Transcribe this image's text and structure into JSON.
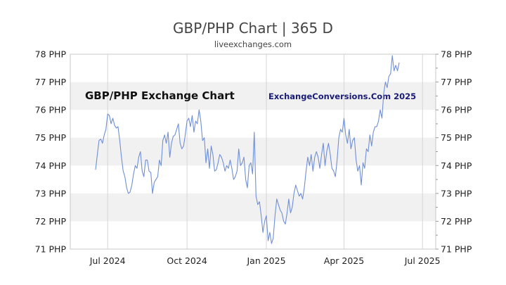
{
  "colors": {
    "line": "#6f8fd8",
    "band": "#f1f1f1",
    "grid": "#d6d6d6",
    "frame": "#c8c8c8"
  },
  "chart_data": {
    "type": "line",
    "title": "GBP/PHP Chart | 365 D",
    "subtitle": "liveexchanges.com",
    "inner_title": "GBP/PHP Exchange Chart",
    "inner_brand": "ExchangeConversions.Com 2025",
    "xlabel": "",
    "ylabel": "",
    "ylim": [
      71,
      78
    ],
    "y_ticks": [
      71,
      72,
      73,
      74,
      75,
      76,
      77,
      78
    ],
    "y_tick_labels": [
      "71 PHP",
      "72 PHP",
      "73 PHP",
      "74 PHP",
      "75 PHP",
      "76 PHP",
      "77 PHP",
      "78 PHP"
    ],
    "x_domain": [
      0,
      365
    ],
    "x_ticks": [
      {
        "x": 14,
        "label": "Jul 2024"
      },
      {
        "x": 106,
        "label": "Oct 2024"
      },
      {
        "x": 198,
        "label": "Jan 2025"
      },
      {
        "x": 288,
        "label": "Apr 2025"
      },
      {
        "x": 379,
        "label": "Jul 2025"
      }
    ],
    "series": [
      {
        "name": "GBP/PHP",
        "points": [
          [
            0,
            73.85
          ],
          [
            2,
            74.4
          ],
          [
            4,
            74.9
          ],
          [
            6,
            74.95
          ],
          [
            8,
            74.8
          ],
          [
            10,
            75.1
          ],
          [
            12,
            75.3
          ],
          [
            14,
            75.85
          ],
          [
            16,
            75.8
          ],
          [
            18,
            75.5
          ],
          [
            20,
            75.7
          ],
          [
            22,
            75.45
          ],
          [
            24,
            75.35
          ],
          [
            26,
            75.4
          ],
          [
            28,
            74.9
          ],
          [
            30,
            74.3
          ],
          [
            32,
            73.8
          ],
          [
            34,
            73.6
          ],
          [
            36,
            73.2
          ],
          [
            38,
            73.0
          ],
          [
            40,
            73.05
          ],
          [
            42,
            73.3
          ],
          [
            44,
            73.7
          ],
          [
            46,
            74.0
          ],
          [
            48,
            73.9
          ],
          [
            50,
            74.3
          ],
          [
            52,
            74.5
          ],
          [
            54,
            73.8
          ],
          [
            56,
            73.6
          ],
          [
            58,
            74.2
          ],
          [
            60,
            74.2
          ],
          [
            62,
            73.8
          ],
          [
            64,
            73.75
          ],
          [
            66,
            73.0
          ],
          [
            68,
            73.4
          ],
          [
            70,
            73.5
          ],
          [
            72,
            73.6
          ],
          [
            74,
            74.2
          ],
          [
            76,
            74.0
          ],
          [
            78,
            74.9
          ],
          [
            80,
            75.1
          ],
          [
            82,
            74.8
          ],
          [
            84,
            75.2
          ],
          [
            86,
            74.3
          ],
          [
            88,
            74.8
          ],
          [
            90,
            75.05
          ],
          [
            92,
            75.1
          ],
          [
            94,
            75.3
          ],
          [
            96,
            75.5
          ],
          [
            98,
            74.8
          ],
          [
            100,
            74.6
          ],
          [
            102,
            74.7
          ],
          [
            104,
            75.1
          ],
          [
            106,
            75.6
          ],
          [
            108,
            75.7
          ],
          [
            110,
            75.4
          ],
          [
            112,
            75.8
          ],
          [
            114,
            75.2
          ],
          [
            116,
            75.6
          ],
          [
            118,
            75.5
          ],
          [
            120,
            76.0
          ],
          [
            122,
            75.6
          ],
          [
            124,
            74.9
          ],
          [
            126,
            75.0
          ],
          [
            128,
            74.1
          ],
          [
            130,
            74.6
          ],
          [
            132,
            73.9
          ],
          [
            134,
            74.7
          ],
          [
            136,
            74.4
          ],
          [
            138,
            73.8
          ],
          [
            140,
            73.85
          ],
          [
            142,
            74.1
          ],
          [
            144,
            74.4
          ],
          [
            146,
            74.3
          ],
          [
            148,
            74.1
          ],
          [
            150,
            73.8
          ],
          [
            152,
            74.0
          ],
          [
            154,
            73.9
          ],
          [
            156,
            74.2
          ],
          [
            158,
            73.9
          ],
          [
            160,
            73.5
          ],
          [
            162,
            73.6
          ],
          [
            164,
            73.8
          ],
          [
            166,
            74.6
          ],
          [
            168,
            74.0
          ],
          [
            170,
            74.1
          ],
          [
            172,
            74.3
          ],
          [
            174,
            73.5
          ],
          [
            176,
            73.2
          ],
          [
            178,
            74.0
          ],
          [
            180,
            74.1
          ],
          [
            182,
            73.7
          ],
          [
            184,
            75.2
          ],
          [
            186,
            72.9
          ],
          [
            188,
            72.6
          ],
          [
            190,
            72.7
          ],
          [
            192,
            72.2
          ],
          [
            194,
            71.6
          ],
          [
            196,
            72.0
          ],
          [
            198,
            72.2
          ],
          [
            200,
            71.3
          ],
          [
            202,
            71.6
          ],
          [
            204,
            71.2
          ],
          [
            206,
            71.4
          ],
          [
            208,
            72.2
          ],
          [
            210,
            72.8
          ],
          [
            212,
            72.6
          ],
          [
            214,
            72.4
          ],
          [
            216,
            72.3
          ],
          [
            218,
            72.0
          ],
          [
            220,
            71.9
          ],
          [
            222,
            72.3
          ],
          [
            224,
            72.8
          ],
          [
            226,
            72.3
          ],
          [
            228,
            72.5
          ],
          [
            230,
            73.0
          ],
          [
            232,
            73.3
          ],
          [
            234,
            73.1
          ],
          [
            236,
            72.9
          ],
          [
            238,
            73.0
          ],
          [
            240,
            72.8
          ],
          [
            242,
            73.2
          ],
          [
            244,
            73.8
          ],
          [
            246,
            74.3
          ],
          [
            248,
            74.0
          ],
          [
            250,
            74.4
          ],
          [
            252,
            73.8
          ],
          [
            254,
            74.3
          ],
          [
            256,
            74.5
          ],
          [
            258,
            74.3
          ],
          [
            260,
            73.9
          ],
          [
            262,
            74.4
          ],
          [
            264,
            74.8
          ],
          [
            266,
            74.0
          ],
          [
            268,
            74.5
          ],
          [
            270,
            74.8
          ],
          [
            272,
            74.4
          ],
          [
            274,
            73.9
          ],
          [
            276,
            73.8
          ],
          [
            278,
            73.6
          ],
          [
            280,
            74.2
          ],
          [
            282,
            75.0
          ],
          [
            284,
            75.3
          ],
          [
            286,
            75.2
          ],
          [
            288,
            75.7
          ],
          [
            290,
            75.1
          ],
          [
            292,
            74.8
          ],
          [
            294,
            75.3
          ],
          [
            296,
            74.6
          ],
          [
            298,
            74.9
          ],
          [
            300,
            75.0
          ],
          [
            302,
            74.2
          ],
          [
            304,
            73.8
          ],
          [
            306,
            74.0
          ],
          [
            308,
            73.3
          ],
          [
            310,
            74.1
          ],
          [
            312,
            73.9
          ],
          [
            314,
            74.6
          ],
          [
            316,
            74.5
          ],
          [
            318,
            75.1
          ],
          [
            320,
            74.7
          ],
          [
            322,
            75.2
          ],
          [
            324,
            75.4
          ],
          [
            326,
            75.4
          ],
          [
            328,
            75.6
          ],
          [
            330,
            76.0
          ],
          [
            332,
            75.7
          ],
          [
            334,
            76.6
          ],
          [
            336,
            77.0
          ],
          [
            338,
            76.8
          ],
          [
            340,
            77.2
          ],
          [
            342,
            77.3
          ],
          [
            344,
            77.95
          ],
          [
            346,
            77.4
          ],
          [
            348,
            77.6
          ],
          [
            350,
            77.4
          ],
          [
            352,
            77.7
          ]
        ]
      }
    ]
  }
}
